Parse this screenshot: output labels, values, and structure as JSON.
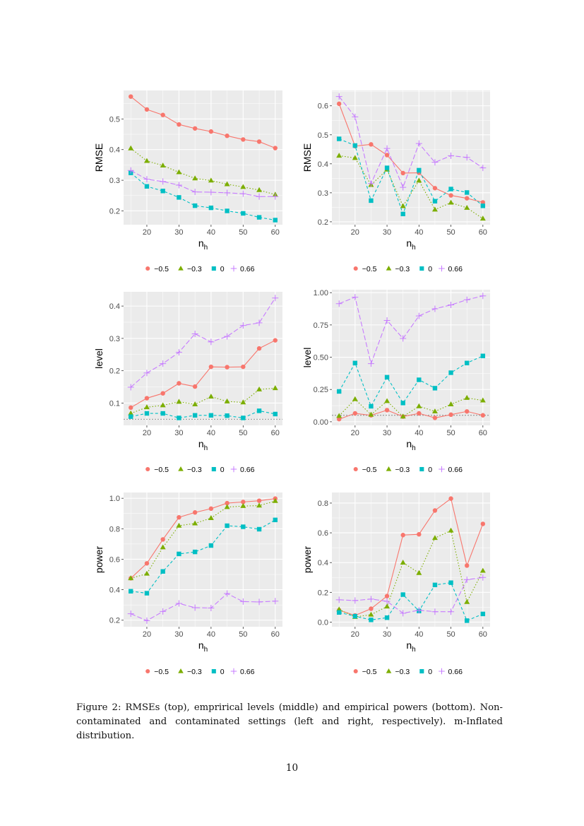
{
  "figure": {
    "caption": "Figure 2: RMSEs (top), emprirical levels (middle) and empirical powers (bottom). Non-contaminated and contaminated settings (left and right, respectively). m-Inflated distribution.",
    "page_number": "10"
  },
  "legend": {
    "entries": [
      {
        "label": "−0.5",
        "color": "#F8766D",
        "shape": "circle",
        "linetype": "solid"
      },
      {
        "label": "−0.3",
        "color": "#7CAE00",
        "shape": "triangle",
        "linetype": "dotted"
      },
      {
        "label": "0",
        "color": "#00BFC4",
        "shape": "square",
        "linetype": "dashed"
      },
      {
        "label": "0.66",
        "color": "#C77CFF",
        "shape": "plus",
        "linetype": "longdash"
      }
    ],
    "placement": "bottom"
  },
  "chart_data": [
    {
      "type": "line",
      "ylabel": "RMSE",
      "xlabel": {
        "main": "n",
        "sub": "h"
      },
      "x": [
        15,
        20,
        25,
        30,
        35,
        40,
        45,
        50,
        55,
        60
      ],
      "xticks": [
        20,
        30,
        40,
        50,
        60
      ],
      "xlim": [
        12.75,
        62.25
      ],
      "ylim": [
        0.155,
        0.593
      ],
      "yticks": [
        0.2,
        0.3,
        0.4,
        0.5
      ],
      "yticklabels": [
        "0.2",
        "0.3",
        "0.4",
        "0.5"
      ],
      "grid": true,
      "series": [
        {
          "name": "−0.5",
          "values": [
            0.573,
            0.531,
            0.513,
            0.482,
            0.469,
            0.459,
            0.445,
            0.433,
            0.426,
            0.405
          ]
        },
        {
          "name": "−0.3",
          "values": [
            0.404,
            0.363,
            0.348,
            0.326,
            0.306,
            0.299,
            0.287,
            0.278,
            0.268,
            0.253
          ]
        },
        {
          "name": "0",
          "values": [
            0.324,
            0.28,
            0.265,
            0.244,
            0.217,
            0.21,
            0.2,
            0.192,
            0.179,
            0.17
          ]
        },
        {
          "name": "0.66",
          "values": [
            0.332,
            0.303,
            0.296,
            0.284,
            0.262,
            0.261,
            0.259,
            0.256,
            0.247,
            0.247
          ]
        }
      ]
    },
    {
      "type": "line",
      "ylabel": "RMSE",
      "xlabel": {
        "main": "n",
        "sub": "h"
      },
      "x": [
        15,
        20,
        25,
        30,
        35,
        40,
        45,
        50,
        55,
        60
      ],
      "xticks": [
        20,
        30,
        40,
        50,
        60
      ],
      "xlim": [
        12.75,
        62.25
      ],
      "ylim": [
        0.19,
        0.653
      ],
      "yticks": [
        0.2,
        0.3,
        0.4,
        0.5,
        0.6
      ],
      "yticklabels": [
        "0.2",
        "0.3",
        "0.4",
        "0.5",
        "0.6"
      ],
      "grid": true,
      "series": [
        {
          "name": "−0.5",
          "values": [
            0.607,
            0.461,
            0.467,
            0.43,
            0.368,
            0.369,
            0.316,
            0.291,
            0.281,
            0.267
          ]
        },
        {
          "name": "−0.3",
          "values": [
            0.428,
            0.42,
            0.327,
            0.38,
            0.254,
            0.342,
            0.242,
            0.266,
            0.248,
            0.211
          ]
        },
        {
          "name": "0",
          "values": [
            0.486,
            0.463,
            0.273,
            0.386,
            0.227,
            0.378,
            0.271,
            0.313,
            0.301,
            0.255
          ]
        },
        {
          "name": "0.66",
          "values": [
            0.632,
            0.562,
            0.332,
            0.453,
            0.319,
            0.47,
            0.405,
            0.428,
            0.422,
            0.386
          ]
        }
      ]
    },
    {
      "type": "line",
      "ylabel": "level",
      "xlabel": {
        "main": "n",
        "sub": "h"
      },
      "x": [
        15,
        20,
        25,
        30,
        35,
        40,
        45,
        50,
        55,
        60
      ],
      "xticks": [
        20,
        30,
        40,
        50,
        60
      ],
      "xlim": [
        12.75,
        62.25
      ],
      "ylim": [
        0.031,
        0.444
      ],
      "yticks": [
        0.1,
        0.2,
        0.3,
        0.4
      ],
      "yticklabels": [
        "0.1",
        "0.2",
        "0.3",
        "0.4"
      ],
      "grid": true,
      "hline": 0.05,
      "series": [
        {
          "name": "−0.5",
          "values": [
            0.086,
            0.115,
            0.13,
            0.161,
            0.151,
            0.212,
            0.211,
            0.212,
            0.269,
            0.294
          ]
        },
        {
          "name": "−0.3",
          "values": [
            0.068,
            0.087,
            0.093,
            0.104,
            0.096,
            0.12,
            0.105,
            0.102,
            0.142,
            0.146
          ]
        },
        {
          "name": "0",
          "values": [
            0.058,
            0.068,
            0.068,
            0.054,
            0.062,
            0.062,
            0.061,
            0.054,
            0.076,
            0.066
          ]
        },
        {
          "name": "0.66",
          "values": [
            0.149,
            0.193,
            0.222,
            0.257,
            0.314,
            0.289,
            0.306,
            0.34,
            0.348,
            0.425
          ]
        }
      ]
    },
    {
      "type": "line",
      "ylabel": "level",
      "xlabel": {
        "main": "n",
        "sub": "h"
      },
      "x": [
        15,
        20,
        25,
        30,
        35,
        40,
        45,
        50,
        55,
        60
      ],
      "xticks": [
        20,
        30,
        40,
        50,
        60
      ],
      "xlim": [
        12.75,
        62.25
      ],
      "ylim": [
        -0.028,
        1.023
      ],
      "yticks": [
        0,
        0.25,
        0.5,
        0.75,
        1
      ],
      "yticklabels": [
        "0.00",
        "0.25",
        "0.50",
        "0.75",
        "1.00"
      ],
      "grid": true,
      "hline": 0.05,
      "series": [
        {
          "name": "−0.5",
          "values": [
            0.02,
            0.065,
            0.05,
            0.09,
            0.04,
            0.065,
            0.03,
            0.055,
            0.08,
            0.05
          ]
        },
        {
          "name": "−0.3",
          "values": [
            0.045,
            0.175,
            0.055,
            0.16,
            0.04,
            0.12,
            0.08,
            0.135,
            0.185,
            0.165
          ]
        },
        {
          "name": "0",
          "values": [
            0.235,
            0.455,
            0.12,
            0.345,
            0.145,
            0.325,
            0.26,
            0.38,
            0.455,
            0.51
          ]
        },
        {
          "name": "0.66",
          "values": [
            0.915,
            0.965,
            0.45,
            0.785,
            0.645,
            0.82,
            0.875,
            0.905,
            0.945,
            0.975
          ]
        }
      ]
    },
    {
      "type": "line",
      "ylabel": "power",
      "xlabel": {
        "main": "n",
        "sub": "h"
      },
      "x": [
        15,
        20,
        25,
        30,
        35,
        40,
        45,
        50,
        55,
        60
      ],
      "xticks": [
        20,
        30,
        40,
        50,
        60
      ],
      "xlim": [
        12.75,
        62.25
      ],
      "ylim": [
        0.157,
        1.038
      ],
      "yticks": [
        0.2,
        0.4,
        0.6,
        0.8,
        1.0
      ],
      "yticklabels": [
        "0.2",
        "0.4",
        "0.6",
        "0.8",
        "1.0"
      ],
      "grid": true,
      "series": [
        {
          "name": "−0.5",
          "values": [
            0.475,
            0.573,
            0.73,
            0.875,
            0.907,
            0.932,
            0.968,
            0.976,
            0.984,
            0.998
          ]
        },
        {
          "name": "−0.3",
          "values": [
            0.475,
            0.505,
            0.678,
            0.82,
            0.835,
            0.87,
            0.942,
            0.949,
            0.952,
            0.982
          ]
        },
        {
          "name": "0",
          "values": [
            0.39,
            0.377,
            0.52,
            0.635,
            0.648,
            0.69,
            0.82,
            0.813,
            0.797,
            0.858
          ]
        },
        {
          "name": "0.66",
          "values": [
            0.242,
            0.197,
            0.257,
            0.31,
            0.282,
            0.28,
            0.375,
            0.322,
            0.32,
            0.325
          ]
        }
      ]
    },
    {
      "type": "line",
      "ylabel": "power",
      "xlabel": {
        "main": "n",
        "sub": "h"
      },
      "x": [
        15,
        20,
        25,
        30,
        35,
        40,
        45,
        50,
        55,
        60
      ],
      "xticks": [
        20,
        30,
        40,
        50,
        60
      ],
      "xlim": [
        12.75,
        62.25
      ],
      "ylim": [
        -0.031,
        0.871
      ],
      "yticks": [
        0,
        0.2,
        0.4,
        0.6,
        0.8
      ],
      "yticklabels": [
        "0.0",
        "0.2",
        "0.4",
        "0.6",
        "0.8"
      ],
      "grid": true,
      "series": [
        {
          "name": "−0.5",
          "values": [
            0.08,
            0.045,
            0.09,
            0.175,
            0.585,
            0.59,
            0.75,
            0.83,
            0.38,
            0.66
          ]
        },
        {
          "name": "−0.3",
          "values": [
            0.085,
            0.035,
            0.05,
            0.105,
            0.4,
            0.33,
            0.565,
            0.615,
            0.135,
            0.345
          ]
        },
        {
          "name": "0",
          "values": [
            0.065,
            0.04,
            0.015,
            0.03,
            0.185,
            0.075,
            0.25,
            0.265,
            0.01,
            0.055
          ]
        },
        {
          "name": "0.66",
          "values": [
            0.15,
            0.145,
            0.155,
            0.14,
            0.06,
            0.08,
            0.07,
            0.07,
            0.285,
            0.3
          ]
        }
      ]
    }
  ]
}
